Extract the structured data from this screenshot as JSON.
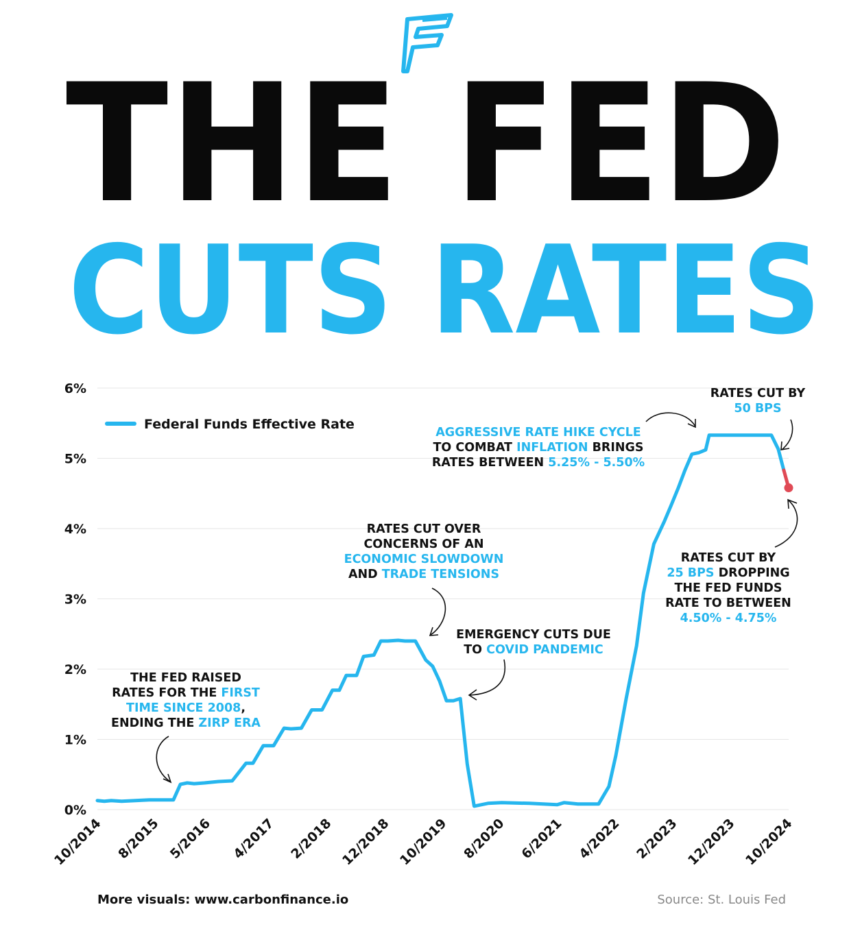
{
  "header": {
    "logo_name": "carbon-finance-logo",
    "title_line1": "THE FED",
    "title_line2": "CUTS RATES"
  },
  "colors": {
    "accent": "#26b6ee",
    "cut": "#e04a55",
    "text": "#111111",
    "muted": "#888888"
  },
  "chart_data": {
    "type": "line",
    "title": "Federal Funds Effective Rate",
    "ylabel": "",
    "xlabel": "",
    "ylim": [
      0,
      6
    ],
    "xlim": [
      2014.75,
      2024.75
    ],
    "yticks": [
      0,
      1,
      2,
      3,
      4,
      5,
      6
    ],
    "ytick_labels": [
      "0%",
      "1%",
      "2%",
      "3%",
      "4%",
      "5%",
      "6%"
    ],
    "xticks": [
      2014.75,
      2015.583,
      2016.333,
      2017.25,
      2018.083,
      2018.917,
      2019.75,
      2020.583,
      2021.417,
      2022.25,
      2023.083,
      2023.917,
      2024.75
    ],
    "xtick_labels": [
      "10/2014",
      "8/2015",
      "5/2016",
      "4/2017",
      "2/2018",
      "12/2018",
      "10/2019",
      "8/2020",
      "6/2021",
      "4/2022",
      "2/2023",
      "12/2023",
      "10/2024"
    ],
    "legend": {
      "label": "Federal Funds Effective Rate",
      "placement": "top-left"
    },
    "series": [
      {
        "name": "Federal Funds Effective Rate",
        "x": [
          2014.75,
          2014.85,
          2014.95,
          2015.1,
          2015.3,
          2015.5,
          2015.7,
          2015.85,
          2015.95,
          2016.05,
          2016.15,
          2016.3,
          2016.5,
          2016.7,
          2016.9,
          2017.0,
          2017.15,
          2017.3,
          2017.45,
          2017.55,
          2017.7,
          2017.85,
          2018.0,
          2018.15,
          2018.25,
          2018.35,
          2018.5,
          2018.6,
          2018.75,
          2018.85,
          2018.95,
          2019.1,
          2019.2,
          2019.35,
          2019.5,
          2019.6,
          2019.7,
          2019.8,
          2019.9,
          2020.0,
          2020.1,
          2020.2,
          2020.4,
          2020.6,
          2021.0,
          2021.4,
          2021.5,
          2021.7,
          2022.0,
          2022.15,
          2022.25,
          2022.4,
          2022.55,
          2022.65,
          2022.8,
          2022.95,
          2023.05,
          2023.15,
          2023.25,
          2023.35,
          2023.45,
          2023.55,
          2023.6,
          2024.0,
          2024.5,
          2024.6,
          2024.68
        ],
        "y": [
          0.13,
          0.12,
          0.13,
          0.12,
          0.13,
          0.14,
          0.14,
          0.14,
          0.36,
          0.38,
          0.37,
          0.38,
          0.4,
          0.41,
          0.66,
          0.66,
          0.91,
          0.91,
          1.16,
          1.15,
          1.16,
          1.42,
          1.42,
          1.7,
          1.7,
          1.91,
          1.91,
          2.18,
          2.2,
          2.4,
          2.4,
          2.41,
          2.4,
          2.4,
          2.13,
          2.04,
          1.83,
          1.55,
          1.55,
          1.58,
          0.65,
          0.05,
          0.09,
          0.1,
          0.09,
          0.07,
          0.1,
          0.08,
          0.08,
          0.33,
          0.77,
          1.58,
          2.33,
          3.08,
          3.78,
          4.1,
          4.33,
          4.57,
          4.83,
          5.06,
          5.08,
          5.12,
          5.33,
          5.33,
          5.33,
          5.13,
          4.83
        ]
      }
    ],
    "cut_segment": {
      "x": [
        2024.68,
        2024.75
      ],
      "y": [
        4.83,
        4.58
      ]
    },
    "annotations": [
      {
        "id": "first-hike",
        "lines": [
          [
            {
              "t": "THE FED RAISED",
              "hl": false
            }
          ],
          [
            {
              "t": "RATES FOR THE ",
              "hl": false
            },
            {
              "t": "FIRST",
              "hl": true
            }
          ],
          [
            {
              "t": "TIME SINCE 2008",
              "hl": true
            },
            {
              "t": ",",
              "hl": false
            }
          ],
          [
            {
              "t": "ENDING THE ",
              "hl": false
            },
            {
              "t": "ZIRP ERA",
              "hl": true
            }
          ]
        ]
      },
      {
        "id": "slowdown-cut",
        "lines": [
          [
            {
              "t": "RATES CUT OVER",
              "hl": false
            }
          ],
          [
            {
              "t": "CONCERNS OF AN",
              "hl": false
            }
          ],
          [
            {
              "t": "ECONOMIC SLOWDOWN",
              "hl": true
            }
          ],
          [
            {
              "t": "AND ",
              "hl": false
            },
            {
              "t": "TRADE TENSIONS",
              "hl": true
            }
          ]
        ]
      },
      {
        "id": "covid-cut",
        "lines": [
          [
            {
              "t": "EMERGENCY CUTS DUE",
              "hl": false
            }
          ],
          [
            {
              "t": "TO ",
              "hl": false
            },
            {
              "t": "COVID PANDEMIC",
              "hl": true
            }
          ]
        ]
      },
      {
        "id": "hike-cycle",
        "lines": [
          [
            {
              "t": "AGGRESSIVE RATE HIKE CYCLE",
              "hl": true
            }
          ],
          [
            {
              "t": "TO COMBAT ",
              "hl": false
            },
            {
              "t": "INFLATION",
              "hl": true
            },
            {
              "t": " BRINGS",
              "hl": false
            }
          ],
          [
            {
              "t": "RATES BETWEEN ",
              "hl": false
            },
            {
              "t": "5.25% - 5.50%",
              "hl": true
            }
          ]
        ]
      },
      {
        "id": "cut-50",
        "lines": [
          [
            {
              "t": "RATES CUT BY",
              "hl": false
            }
          ],
          [
            {
              "t": "50 BPS",
              "hl": true
            }
          ]
        ]
      },
      {
        "id": "cut-25",
        "lines": [
          [
            {
              "t": "RATES CUT BY",
              "hl": false
            }
          ],
          [
            {
              "t": "25 BPS",
              "hl": true
            },
            {
              "t": "  DROPPING",
              "hl": false
            }
          ],
          [
            {
              "t": "THE FED FUNDS",
              "hl": false
            }
          ],
          [
            {
              "t": "RATE TO BETWEEN",
              "hl": false
            }
          ],
          [
            {
              "t": "4.50% - 4.75%",
              "hl": true
            }
          ]
        ]
      }
    ]
  },
  "footer": {
    "more_visuals": "More visuals: www.carbonfinance.io",
    "source": "Source: St. Louis Fed"
  }
}
